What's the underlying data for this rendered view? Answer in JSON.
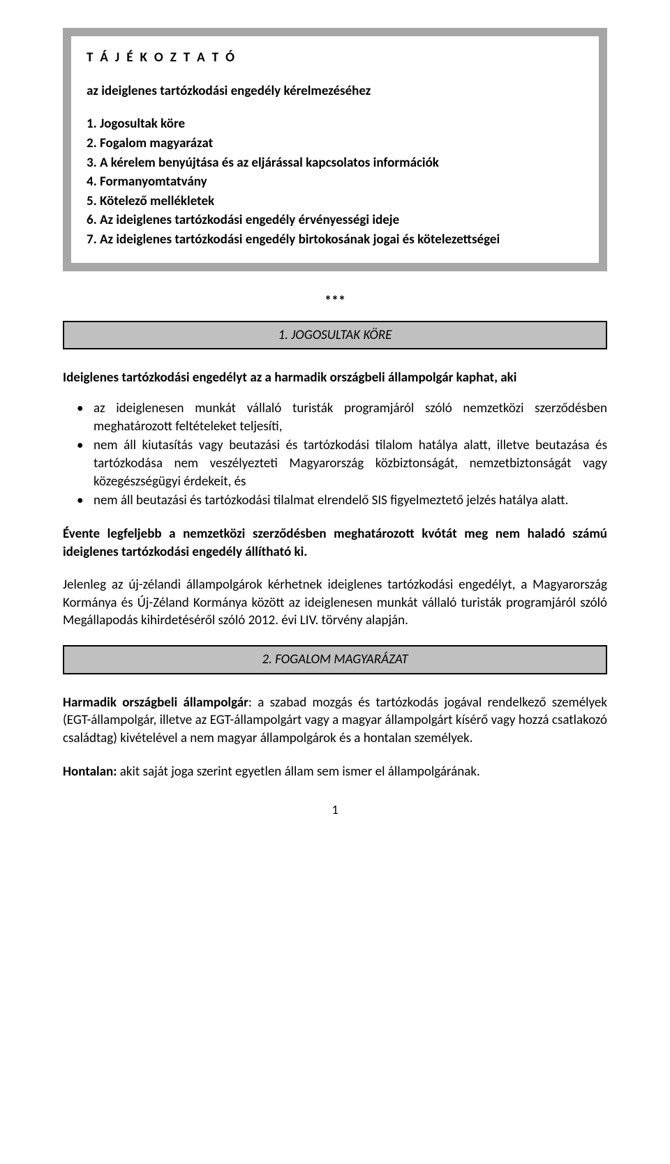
{
  "colors": {
    "box_border": "#a6a6a6",
    "section_bg": "#c0c0c0",
    "section_border": "#000000",
    "text": "#000000",
    "page_bg": "#ffffff"
  },
  "typography": {
    "body_fontsize_pt": 14,
    "title_letter_spacing_em": 0.15,
    "font_family": "Calibri"
  },
  "box": {
    "title": "T Á J É K O Z T A T Ó",
    "subtitle": "az ideiglenes tartózkodási engedély kérelmezéséhez",
    "toc": [
      "1. Jogosultak köre",
      "2. Fogalom magyarázat",
      "3. A kérelem benyújtása és az eljárással kapcsolatos információk",
      "4. Formanyomtatvány",
      "5. Kötelező mellékletek",
      "6. Az ideiglenes tartózkodási engedély érvényességi ideje",
      "7. Az ideiglenes tartózkodási engedély birtokosának jogai és kötelezettségei"
    ]
  },
  "stars": "***",
  "section1": {
    "heading": "1. JOGOSULTAK KÖRE",
    "intro": "Ideiglenes tartózkodási engedélyt az a harmadik országbeli állampolgár kaphat, aki",
    "bullets": [
      "az ideiglenesen munkát vállaló turisták programjáról szóló nemzetközi szerződésben meghatározott feltételeket teljesíti,",
      "nem áll kiutasítás vagy beutazási és tartózkodási tilalom hatálya alatt, illetve beutazása és tartózkodása nem veszélyezteti Magyarország közbiztonságát, nemzetbiztonságát vagy közegészségügyi érdekeit, és",
      "nem áll beutazási és tartózkodási tilalmat elrendelő SIS figyelmeztető jelzés hatálya alatt."
    ],
    "quota": "Évente legfeljebb a nemzetközi szerződésben meghatározott kvótát meg nem haladó számú ideiglenes tartózkodási engedély állítható ki.",
    "current": "Jelenleg az új-zélandi állampolgárok kérhetnek ideiglenes tartózkodási engedélyt, a Magyarország Kormánya és Új-Zéland Kormánya között az ideiglenesen munkát vállaló turisták programjáról szóló Megállapodás kihirdetéséről szóló 2012. évi LIV. törvény alapján."
  },
  "section2": {
    "heading": "2. FOGALOM MAGYARÁZAT",
    "def1_label": "Harmadik országbeli állampolgár",
    "def1_text": ": a szabad mozgás és tartózkodás jogával rendelkező személyek (EGT-állampolgár, illetve az EGT-állampolgárt vagy a magyar állampolgárt kísérő vagy hozzá csatlakozó családtag) kivételével a nem magyar állampolgárok és a hontalan személyek.",
    "def2_label": "Hontalan:",
    "def2_text": " akit saját joga szerint egyetlen állam sem ismer el állampolgárának."
  },
  "page_number": "1"
}
